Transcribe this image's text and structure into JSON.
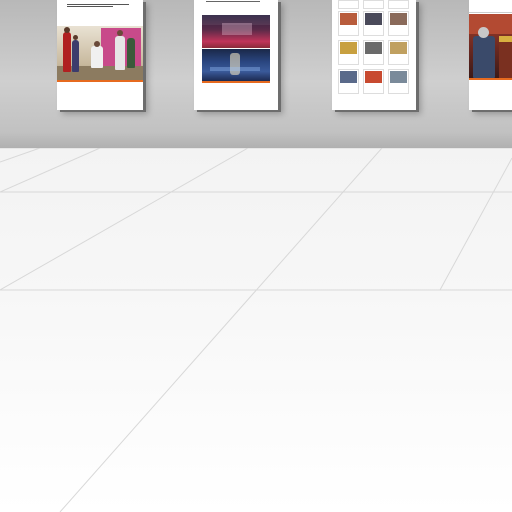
{
  "scene": "virtual-gallery",
  "panels": [
    {
      "id": "panel-1",
      "caption": ""
    },
    {
      "id": "panel-2",
      "caption": ""
    },
    {
      "id": "panel-3",
      "tiles": 12
    },
    {
      "id": "panel-4",
      "caption": ""
    }
  ],
  "colors": {
    "accent": "#e66a1f",
    "wall": "#c4c4c4",
    "floor": "#f5f5f5"
  }
}
